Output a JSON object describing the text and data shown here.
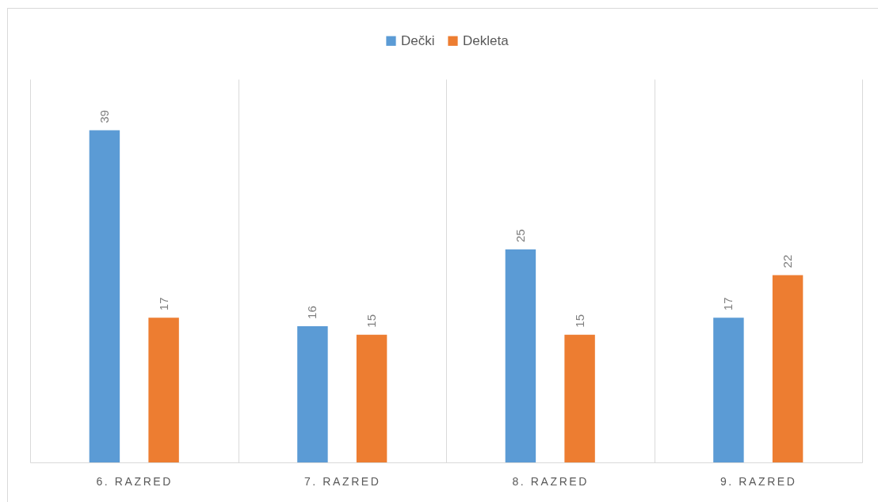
{
  "chart_data": {
    "type": "bar",
    "categories": [
      "6. RAZRED",
      "7. RAZRED",
      "8. RAZRED",
      "9. RAZRED"
    ],
    "series": [
      {
        "name": "Dečki",
        "color": "#5b9bd5",
        "values": [
          39,
          16,
          25,
          17
        ]
      },
      {
        "name": "Dekleta",
        "color": "#ed7d31",
        "values": [
          17,
          15,
          15,
          22
        ]
      }
    ],
    "ylim": [
      0,
      45
    ],
    "tick_labels": "x",
    "grid": "x",
    "legend": "top",
    "data_labels": true
  }
}
